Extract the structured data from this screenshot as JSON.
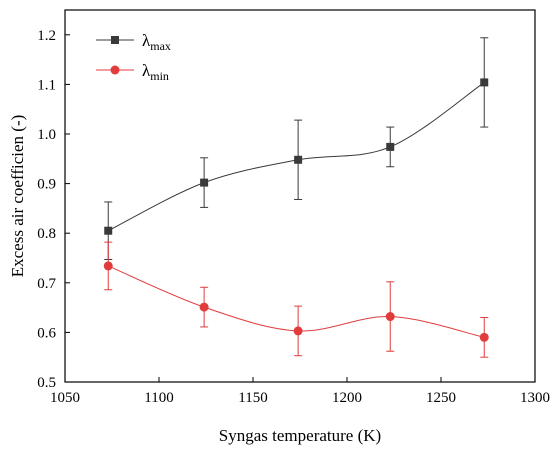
{
  "chart_data": {
    "type": "scatter",
    "xlabel": "Syngas temperature (K)",
    "ylabel": "Excess air coefficien (-)",
    "xlim": [
      1050,
      1300
    ],
    "ylim": [
      0.5,
      1.25
    ],
    "xticks": [
      1050,
      1100,
      1150,
      1200,
      1250,
      1300
    ],
    "yticks": [
      0.5,
      0.6,
      0.7,
      0.8,
      0.9,
      1.0,
      1.1,
      1.2
    ],
    "xtick_labels": [
      "1050",
      "1100",
      "1150",
      "1200",
      "1250",
      "1300"
    ],
    "ytick_labels": [
      "0.5",
      "0.6",
      "0.7",
      "0.8",
      "0.9",
      "1.0",
      "1.1",
      "1.2"
    ],
    "grid": false,
    "legend_position": "top-left",
    "series": [
      {
        "name": "λmax",
        "symbol": "λ",
        "subscript": "max",
        "color": "#3a3a3a",
        "marker": "square",
        "x": [
          1073,
          1124,
          1174,
          1223,
          1273
        ],
        "y": [
          0.805,
          0.902,
          0.948,
          0.974,
          1.104
        ],
        "err": [
          0.058,
          0.05,
          0.08,
          0.04,
          0.09
        ]
      },
      {
        "name": "λmin",
        "symbol": "λ",
        "subscript": "min",
        "color": "#e03c3c",
        "marker": "circle",
        "x": [
          1073,
          1124,
          1174,
          1223,
          1273
        ],
        "y": [
          0.734,
          0.651,
          0.603,
          0.632,
          0.59
        ],
        "err": [
          0.048,
          0.04,
          0.05,
          0.07,
          0.04
        ]
      }
    ]
  }
}
